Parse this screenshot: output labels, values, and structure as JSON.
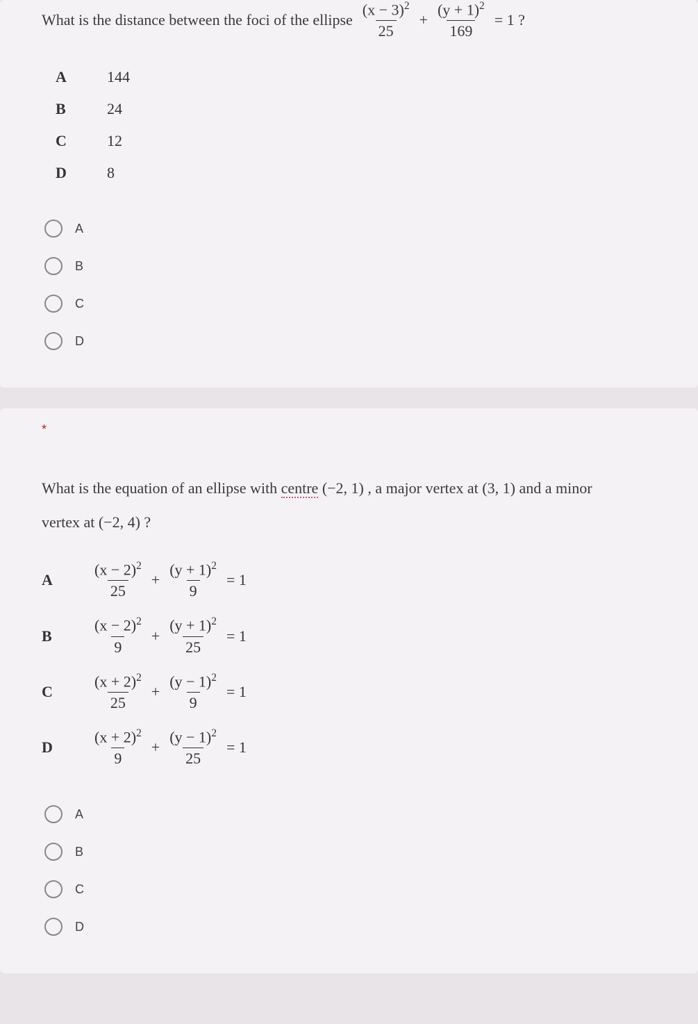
{
  "q1": {
    "prompt_prefix": "What is the distance between the foci of the ellipse",
    "eq": {
      "term1_num": "(x − 3)",
      "term1_exp": "2",
      "term1_den": "25",
      "plus": "+",
      "term2_num": "(y + 1)",
      "term2_exp": "2",
      "term2_den": "169",
      "rhs": "= 1 ?"
    },
    "options": [
      {
        "label": "A",
        "value": "144"
      },
      {
        "label": "B",
        "value": "24"
      },
      {
        "label": "C",
        "value": "12"
      },
      {
        "label": "D",
        "value": "8"
      }
    ],
    "radios": [
      "A",
      "B",
      "C",
      "D"
    ]
  },
  "q2": {
    "required_marker": "*",
    "prompt_p1": "What is the equation of an ellipse with ",
    "prompt_centre_word": "centre",
    "prompt_centre_val": " (−2, 1) ,  a major vertex at  (3, 1)  and a minor",
    "prompt_p2": "vertex at  (−2, 4) ?",
    "options": [
      {
        "label": "A",
        "t1n": "(x − 2)",
        "t1d": "25",
        "t2n": "(y + 1)",
        "t2d": "9"
      },
      {
        "label": "B",
        "t1n": "(x − 2)",
        "t1d": "9",
        "t2n": "(y + 1)",
        "t2d": "25"
      },
      {
        "label": "C",
        "t1n": "(x + 2)",
        "t1d": "25",
        "t2n": "(y − 1)",
        "t2d": "9"
      },
      {
        "label": "D",
        "t1n": "(x + 2)",
        "t1d": "9",
        "t2n": "(y − 1)",
        "t2d": "25"
      }
    ],
    "eq_exp": "2",
    "eq_plus": "+",
    "eq_rhs": "= 1",
    "radios": [
      "A",
      "B",
      "C",
      "D"
    ]
  },
  "colors": {
    "page_bg": "#e8e4e8",
    "card_bg": "#f5f2f5",
    "text": "#333333",
    "radio_border": "#888888",
    "required": "#c02020",
    "underline": "#c06080"
  }
}
